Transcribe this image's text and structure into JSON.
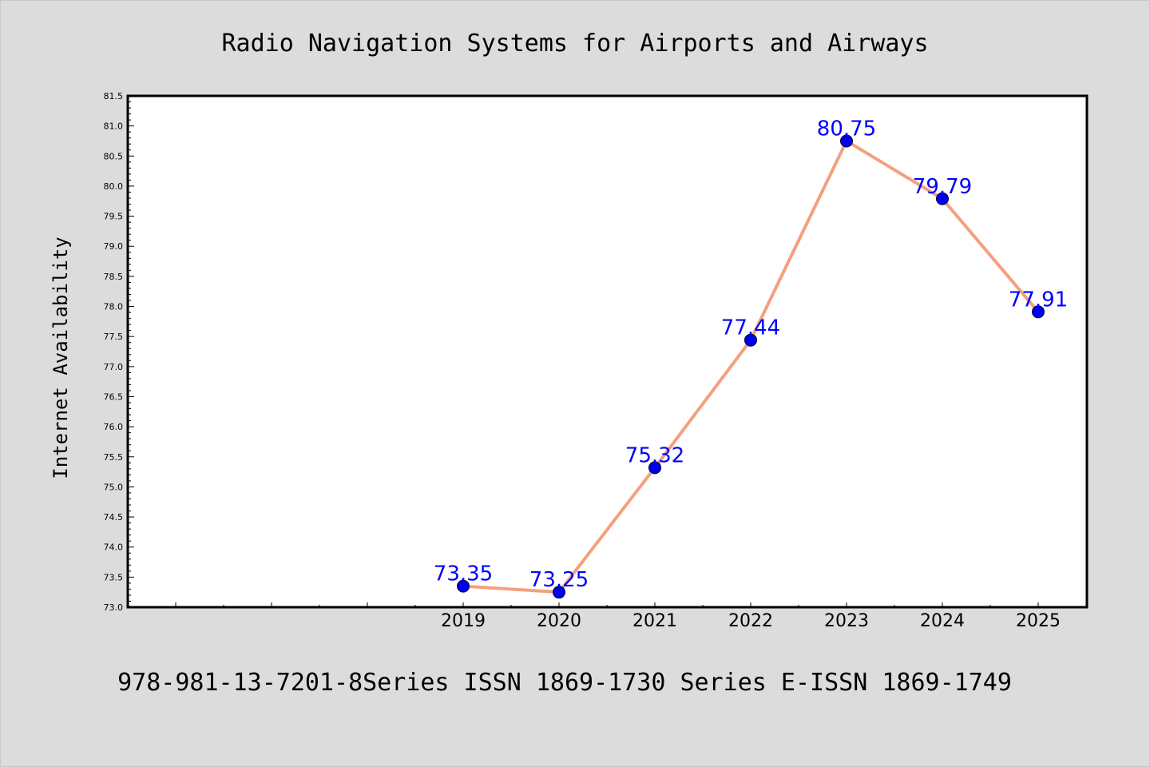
{
  "chart_data": {
    "type": "line",
    "title": "Radio Navigation Systems for Airports and Airways",
    "xlabel": "",
    "ylabel": "Internet Availability",
    "footer": "978-981-13-7201-8Series ISSN 1869-1730 Series E-ISSN 1869-1749",
    "categories": [
      "2019",
      "2020",
      "2021",
      "2022",
      "2023",
      "2024",
      "2025"
    ],
    "values": [
      73.35,
      73.25,
      75.32,
      77.44,
      80.75,
      79.79,
      77.91
    ],
    "point_labels": [
      "73.35",
      "73.25",
      "75.32",
      "77.44",
      "80.75",
      "79.79",
      "77.91"
    ],
    "ylim": [
      73.0,
      81.5
    ],
    "yticks": [
      "73.0",
      "73.5",
      "74.0",
      "74.5",
      "75.0",
      "75.5",
      "76.0",
      "76.5",
      "77.0",
      "77.5",
      "78.0",
      "78.5",
      "79.0",
      "79.5",
      "80.0",
      "80.5",
      "81.0",
      "81.5"
    ],
    "grid": false,
    "line_color": "#f4a07e",
    "marker_color": "#0000ee",
    "label_color": "#0000ff"
  }
}
